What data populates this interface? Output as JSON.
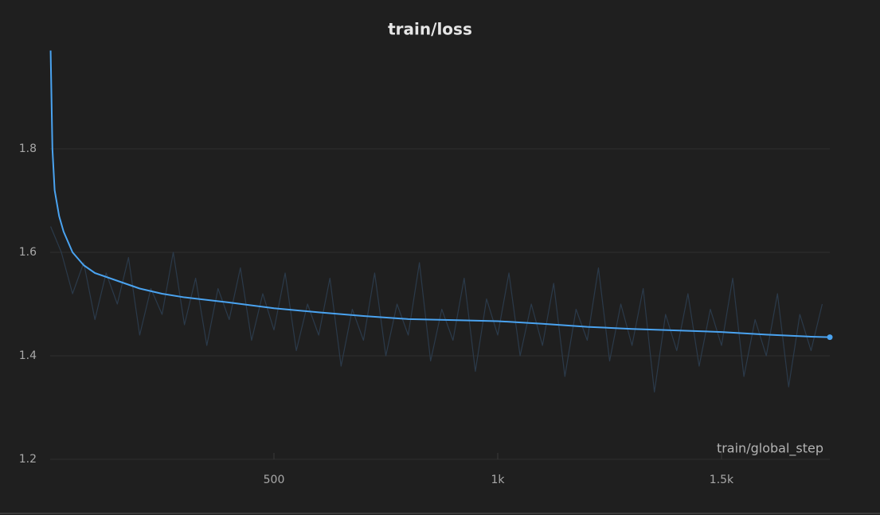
{
  "chart_data": {
    "type": "line",
    "title": "train/loss",
    "x_label": "train/global_step",
    "xlim": [
      0,
      1742
    ],
    "ylim": [
      1.2,
      2.0
    ],
    "xticks": [
      500,
      {
        "value": 1000,
        "label": "1k"
      },
      {
        "value": 1500,
        "label": "1.5k"
      }
    ],
    "yticks": [
      1.2,
      1.4,
      1.6,
      1.8
    ],
    "grid": true,
    "series": [
      {
        "color": "#2b3a4a",
        "x": [
          1,
          25,
          50,
          75,
          100,
          125,
          150,
          175,
          200,
          225,
          250,
          275,
          300,
          325,
          350,
          375,
          400,
          425,
          450,
          475,
          500,
          525,
          550,
          575,
          600,
          625,
          650,
          675,
          700,
          725,
          750,
          775,
          800,
          825,
          850,
          875,
          900,
          925,
          950,
          975,
          1000,
          1025,
          1050,
          1075,
          1100,
          1125,
          1150,
          1175,
          1200,
          1225,
          1250,
          1275,
          1300,
          1325,
          1350,
          1375,
          1400,
          1425,
          1450,
          1475,
          1500,
          1525,
          1550,
          1575,
          1600,
          1625,
          1650,
          1675,
          1700,
          1725
        ],
        "values": [
          1.65,
          1.6,
          1.52,
          1.58,
          1.47,
          1.56,
          1.5,
          1.59,
          1.44,
          1.53,
          1.48,
          1.6,
          1.46,
          1.55,
          1.42,
          1.53,
          1.47,
          1.57,
          1.43,
          1.52,
          1.45,
          1.56,
          1.41,
          1.5,
          1.44,
          1.55,
          1.38,
          1.49,
          1.43,
          1.56,
          1.4,
          1.5,
          1.44,
          1.58,
          1.39,
          1.49,
          1.43,
          1.55,
          1.37,
          1.51,
          1.44,
          1.56,
          1.4,
          1.5,
          1.42,
          1.54,
          1.36,
          1.49,
          1.43,
          1.57,
          1.39,
          1.5,
          1.42,
          1.53,
          1.33,
          1.48,
          1.41,
          1.52,
          1.38,
          1.49,
          1.42,
          1.55,
          1.36,
          1.47,
          1.4,
          1.52,
          1.34,
          1.48,
          1.41,
          1.5
        ]
      },
      {
        "color": "#4aa3f0",
        "x": [
          1,
          5,
          10,
          20,
          30,
          50,
          75,
          100,
          150,
          200,
          250,
          300,
          400,
          500,
          600,
          700,
          800,
          900,
          1000,
          1100,
          1200,
          1300,
          1400,
          1500,
          1600,
          1700,
          1742
        ],
        "values": [
          1.99,
          1.8,
          1.72,
          1.67,
          1.64,
          1.6,
          1.575,
          1.56,
          1.545,
          1.53,
          1.52,
          1.513,
          1.503,
          1.492,
          1.484,
          1.477,
          1.471,
          1.469,
          1.467,
          1.462,
          1.456,
          1.452,
          1.449,
          1.446,
          1.441,
          1.437,
          1.436
        ]
      }
    ]
  }
}
